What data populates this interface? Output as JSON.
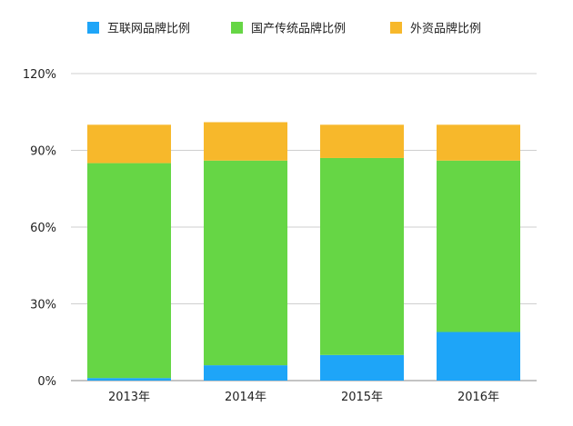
{
  "chart_data": {
    "type": "bar",
    "stacked": true,
    "categories": [
      "2013年",
      "2014年",
      "2015年",
      "2016年"
    ],
    "series": [
      {
        "name": "互联网品牌比例",
        "color": "#1ea5f8",
        "values": [
          1,
          6,
          10,
          19
        ]
      },
      {
        "name": "国产传统品牌比例",
        "color": "#66d645",
        "values": [
          84,
          80,
          77,
          67
        ]
      },
      {
        "name": "外资品牌比例",
        "color": "#f7b82b",
        "values": [
          15,
          15,
          13,
          14
        ]
      }
    ],
    "y_ticks": [
      "0%",
      "30%",
      "60%",
      "90%",
      "120%"
    ],
    "y_tick_values": [
      0,
      30,
      60,
      90,
      120
    ],
    "ylim": [
      0,
      120
    ],
    "grid": true,
    "legend_position": "top"
  }
}
